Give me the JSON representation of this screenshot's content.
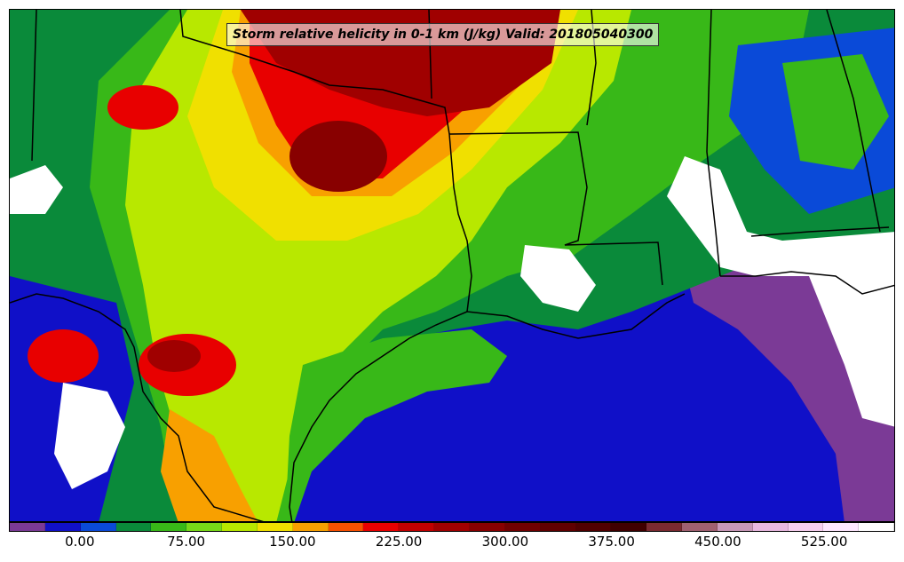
{
  "title": "Storm relative helicity in 0-1 km (J/kg) Valid: 201805040300",
  "colorbar": {
    "colors": [
      "#7b3a96",
      "#1010c8",
      "#0a4ad8",
      "#0a8a3a",
      "#38b818",
      "#78d818",
      "#b8e800",
      "#f0e000",
      "#f8a000",
      "#f85000",
      "#e80000",
      "#c00000",
      "#a00000",
      "#880000",
      "#700000",
      "#600000",
      "#500000",
      "#400000",
      "#7a2a30",
      "#a06070",
      "#c898b8",
      "#e8b8e0",
      "#f8d0f0",
      "#ffe8ff",
      "#ffffff"
    ],
    "labels": [
      "0.00",
      "75.00",
      "150.00",
      "225.00",
      "300.00",
      "375.00",
      "450.00",
      "525.00"
    ],
    "label_values": [
      0,
      75,
      150,
      225,
      300,
      375,
      450,
      525
    ],
    "min": -50,
    "max": 575
  }
}
